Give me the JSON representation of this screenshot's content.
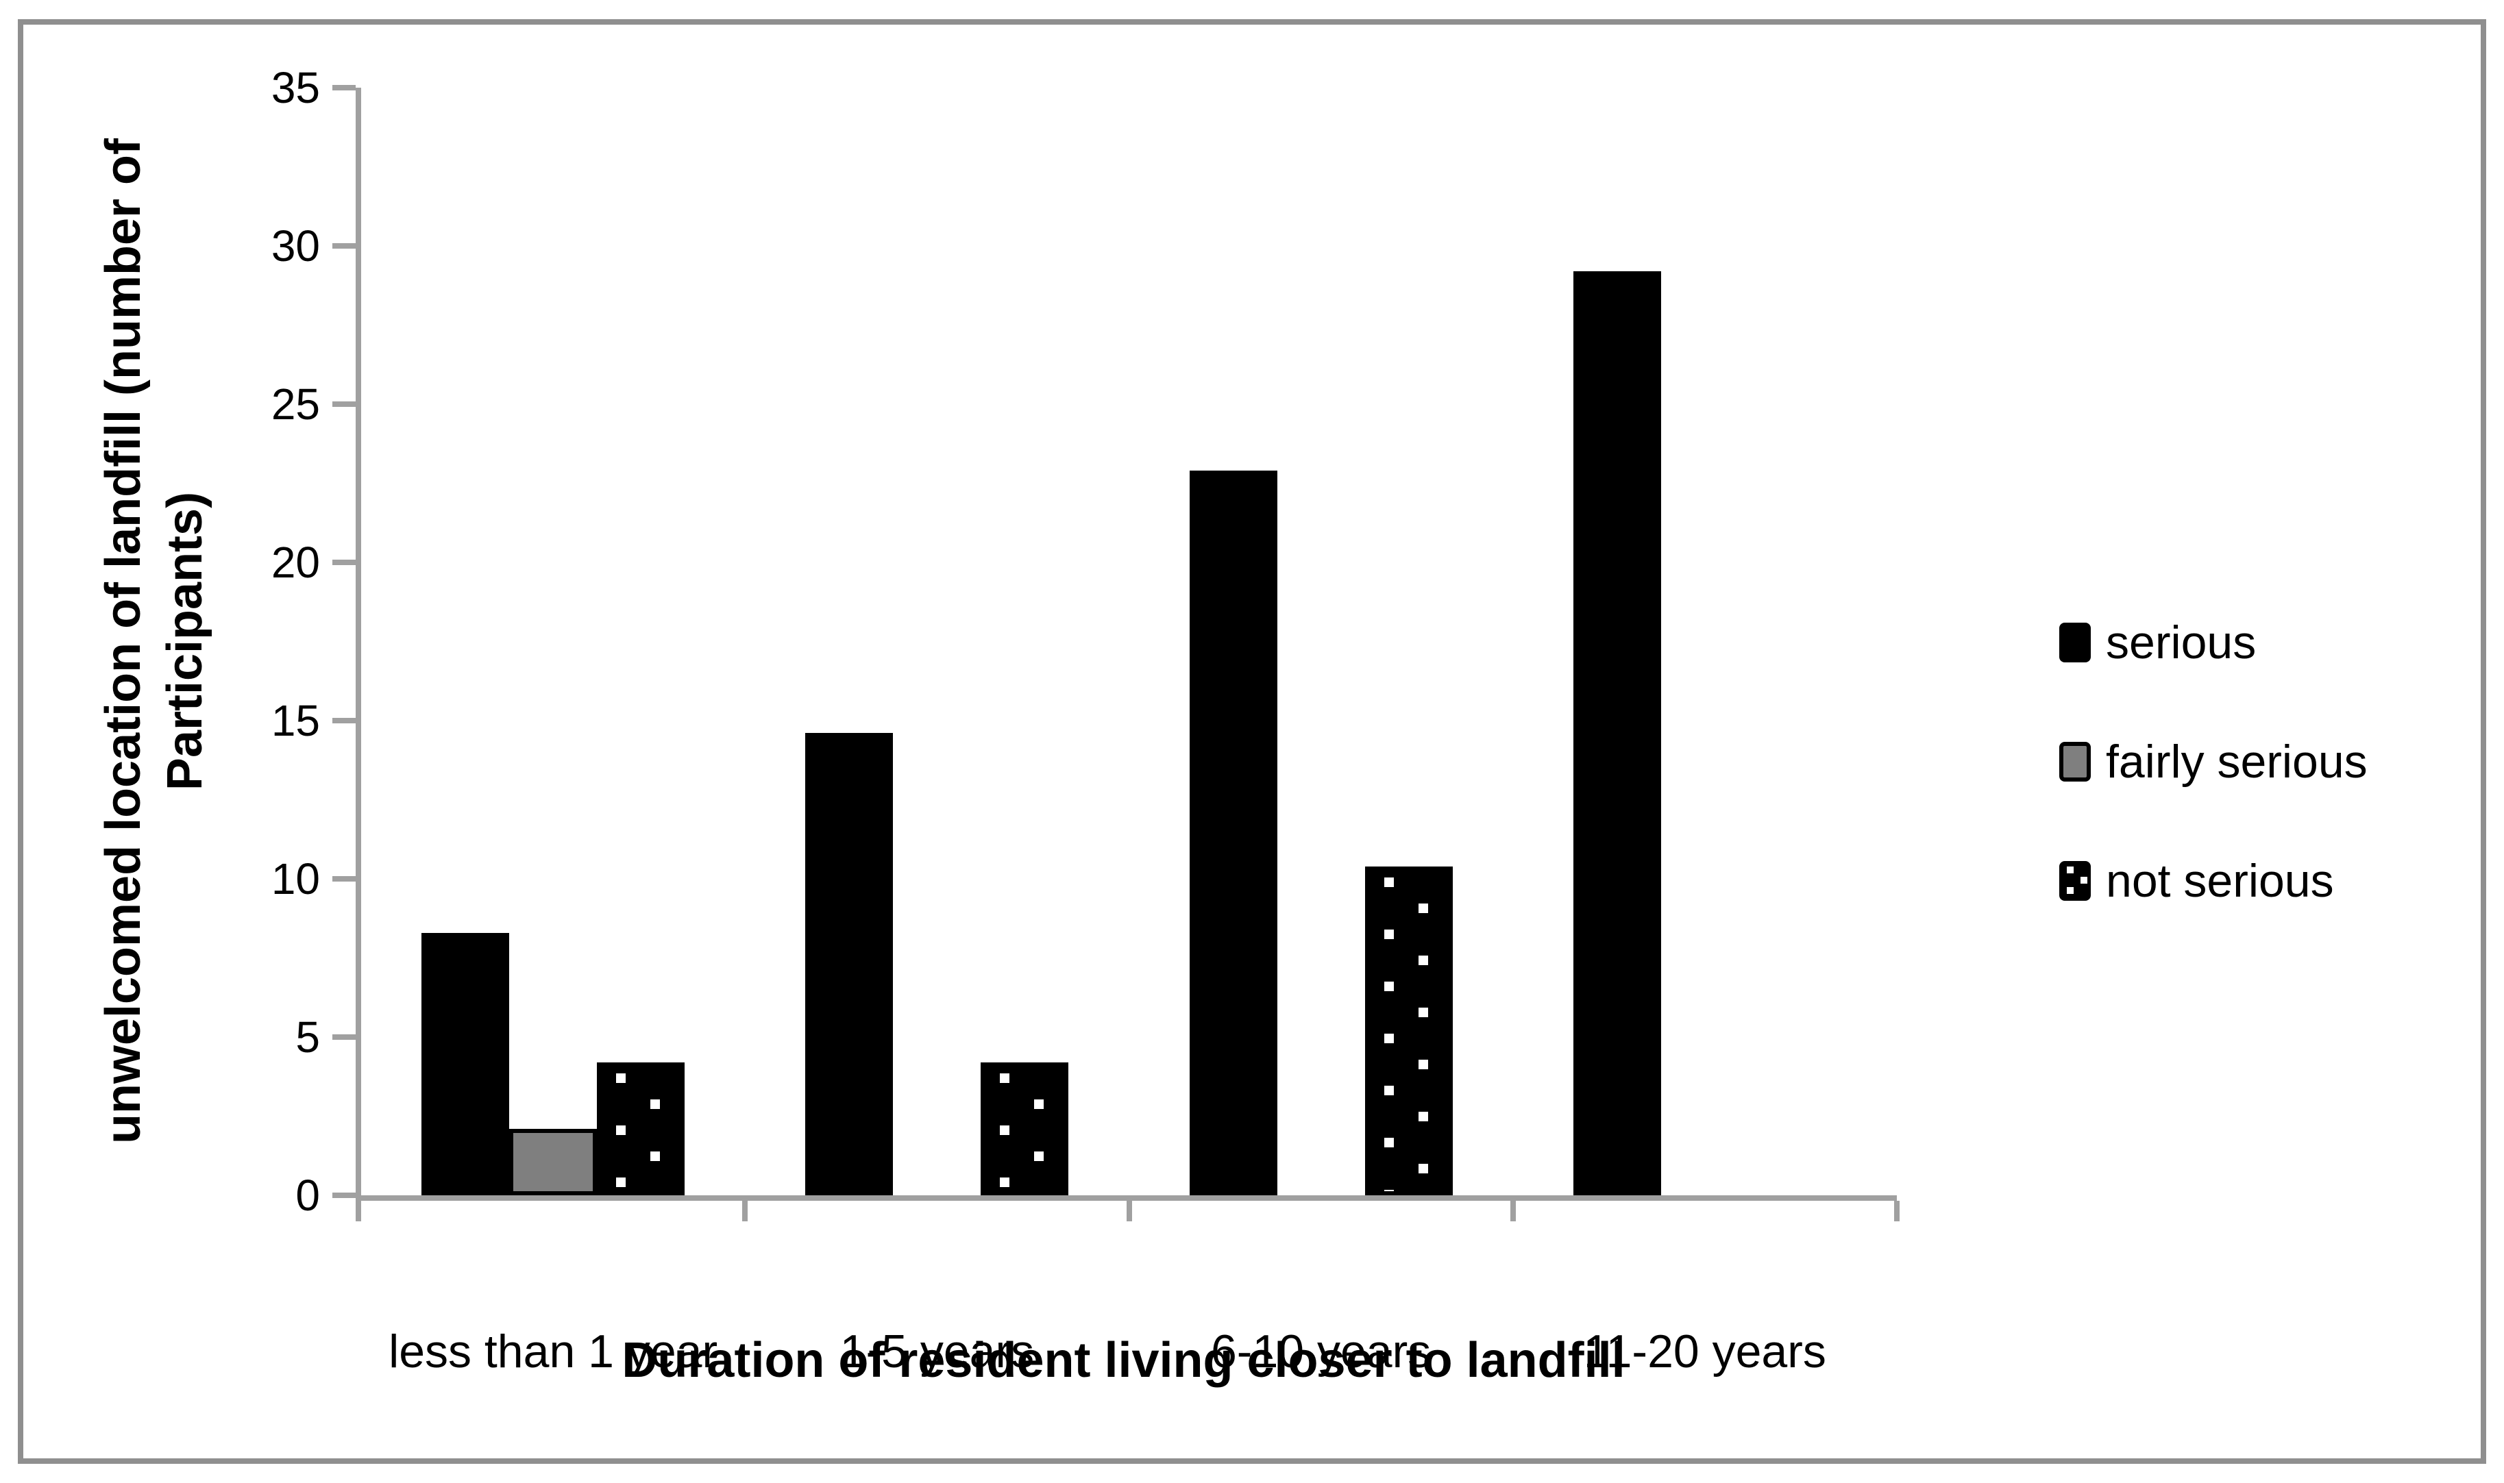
{
  "chart_data": {
    "type": "bar",
    "title": "",
    "categories": [
      "less than 1 year",
      "1-5 years",
      "6-10 years",
      "11-20 years"
    ],
    "series": [
      {
        "name": "serious",
        "style": "solid-black",
        "values": [
          8.3,
          14.6,
          22.9,
          29.2
        ]
      },
      {
        "name": "fairly serious",
        "style": "gray",
        "values": [
          2.1,
          0,
          0,
          0
        ]
      },
      {
        "name": "not serious",
        "style": "black-white-dots",
        "values": [
          4.2,
          4.2,
          10.4,
          0
        ]
      }
    ],
    "xlabel": "Duration of resident living closer to landfill",
    "ylabel": "unwelcomed location of landfill (number of\nParticipants)",
    "ylim": [
      0,
      35
    ],
    "yticks": [
      0,
      5,
      10,
      15,
      20,
      25,
      30,
      35
    ],
    "grid": false,
    "legend_position": "right"
  },
  "legend": {
    "items": [
      {
        "label": "serious",
        "swatch": "solid-black"
      },
      {
        "label": "fairly serious",
        "swatch": "gray"
      },
      {
        "label": "not serious",
        "swatch": "black-white-dots"
      }
    ]
  },
  "colors": {
    "bar_black": "#000000",
    "bar_gray": "#7f7f7f",
    "dot_white": "#ffffff",
    "axis_gray": "#a0a0a0",
    "border_gray": "#8f8f8f",
    "text_black": "#000000"
  }
}
